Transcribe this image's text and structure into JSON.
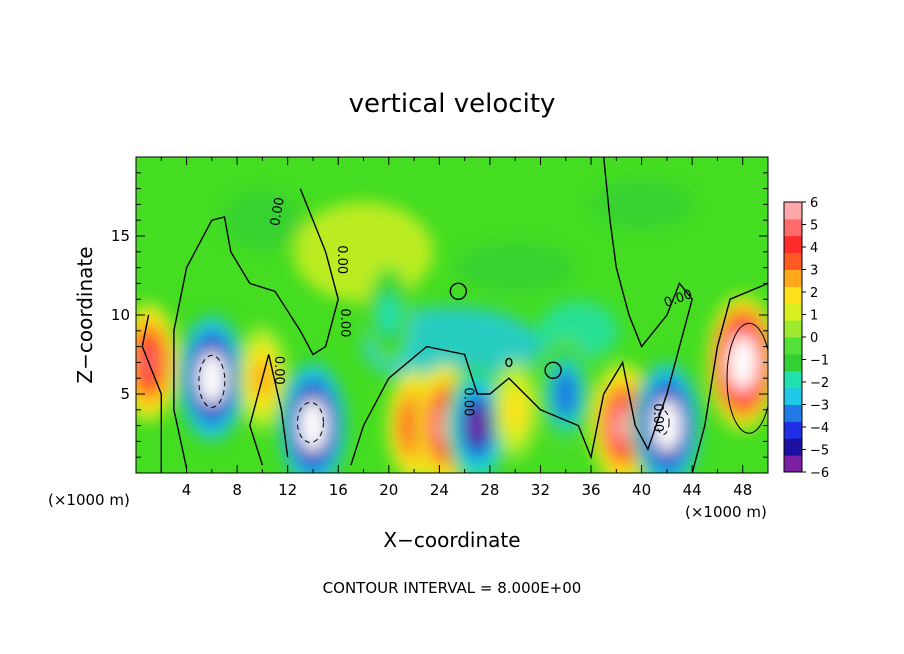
{
  "chart_data": {
    "type": "heatmap",
    "title": "vertical velocity",
    "xlabel": "X−coordinate",
    "ylabel": "Z−coordinate",
    "x_unit_left": "(×1000 m)",
    "x_unit_right": "(×1000 m)",
    "footer": "CONTOUR INTERVAL = 8.000E+00",
    "xlim": [
      0,
      50
    ],
    "ylim": [
      0,
      20
    ],
    "x_ticks": [
      4,
      8,
      12,
      16,
      20,
      24,
      28,
      32,
      36,
      40,
      44,
      48
    ],
    "y_ticks": [
      5,
      10,
      15
    ],
    "colorbar": {
      "levels": [
        "6",
        "5",
        "4",
        "3",
        "2",
        "1",
        "0",
        "−1",
        "−2",
        "−3",
        "−4",
        "−5",
        "−6"
      ],
      "colors": [
        "#7a1fa2",
        "#1a0fa0",
        "#1f2fe6",
        "#1f7ae6",
        "#20c8e8",
        "#22e0b0",
        "#33d033",
        "#55e03a",
        "#9bea30",
        "#d9f020",
        "#ffe01a",
        "#ffa81a",
        "#ff5a22",
        "#ff2a2a",
        "#ff6a6a",
        "#ffa8a8"
      ]
    },
    "contour_labels": [
      "0.00",
      "0.00",
      "0.00",
      "0.00",
      "0.00",
      "0.00",
      "0.00"
    ],
    "features": [
      {
        "x": 1,
        "z": 7,
        "w": 5
      },
      {
        "x": 6,
        "z": 6,
        "w": -8
      },
      {
        "x": 10,
        "z": 6,
        "w": 3
      },
      {
        "x": 14,
        "z": 3,
        "w": -8
      },
      {
        "x": 22,
        "z": 3,
        "w": 4
      },
      {
        "x": 24.5,
        "z": 3,
        "w": 6
      },
      {
        "x": 27,
        "z": 3,
        "w": -6
      },
      {
        "x": 30,
        "z": 4,
        "w": 2
      },
      {
        "x": 34,
        "z": 5,
        "w": -4
      },
      {
        "x": 38.5,
        "z": 3,
        "w": 6
      },
      {
        "x": 42,
        "z": 3,
        "w": -8
      },
      {
        "x": 48,
        "z": 7,
        "w": 8
      },
      {
        "x": 20,
        "z": 10,
        "w": -2
      }
    ]
  }
}
